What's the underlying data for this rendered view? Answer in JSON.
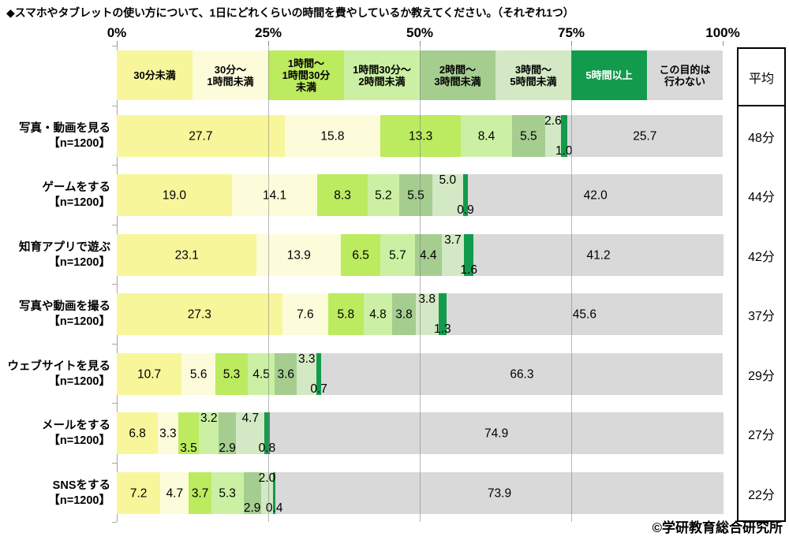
{
  "title": "◆スマホやタブレットの使い方について、1日にどれくらいの時間を費やしているか教えてください。（それぞれ1つ）",
  "x_axis": {
    "tick_labels": [
      "0%",
      "25%",
      "50%",
      "75%",
      "100%"
    ]
  },
  "average_column": {
    "header": "平均"
  },
  "footer": {
    "credit": "©学研教育総合研究所"
  },
  "chart_data": {
    "type": "bar",
    "subtype": "horizontal-stacked",
    "unit": "percent",
    "xlim": [
      0,
      100
    ],
    "x_ticks": [
      "0%",
      "25%",
      "50%",
      "75%",
      "100%"
    ],
    "grid": true,
    "legend_position": "top",
    "segments": [
      {
        "label": "30分未満",
        "display": "30分未満",
        "color": "#F7F69B",
        "text_color": "#000000"
      },
      {
        "label": "30分～1時間未満",
        "display": "30分～\n1時間未満",
        "color": "#FCFCDB",
        "text_color": "#000000"
      },
      {
        "label": "1時間～1時間30分未満",
        "display": "1時間～\n1時間30分\n未満",
        "color": "#BCEB5F",
        "text_color": "#000000"
      },
      {
        "label": "1時間30分～2時間未満",
        "display": "1時間30分～\n2時間未満",
        "color": "#CBF0A3",
        "text_color": "#000000"
      },
      {
        "label": "2時間～3時間未満",
        "display": "2時間～\n3時間未満",
        "color": "#A5CD90",
        "text_color": "#000000"
      },
      {
        "label": "3時間～5時間未満",
        "display": "3時間～\n5時間未満",
        "color": "#D3E8C4",
        "text_color": "#000000"
      },
      {
        "label": "5時間以上",
        "display": "5時間以上",
        "color": "#129B4C",
        "text_color": "#FFFFFF"
      },
      {
        "label": "この目的は行わない",
        "display": "この目的は\n行わない",
        "color": "#D9D9D9",
        "text_color": "#000000"
      }
    ],
    "rows": [
      {
        "label": "写真・動画を見る",
        "n": "【n=1200】",
        "average": "48分",
        "values": [
          27.7,
          15.8,
          13.3,
          8.4,
          5.5,
          2.6,
          1.0,
          25.7
        ],
        "placement": [
          "in",
          "in",
          "in",
          "in",
          "in",
          "up",
          "down",
          "in"
        ]
      },
      {
        "label": "ゲームをする",
        "n": "【n=1200】",
        "average": "44分",
        "values": [
          19.0,
          14.1,
          8.3,
          5.2,
          5.5,
          5.0,
          0.9,
          42.0
        ],
        "placement": [
          "in",
          "in",
          "in",
          "in",
          "in",
          "up",
          "down",
          "in"
        ]
      },
      {
        "label": "知育アプリで遊ぶ",
        "n": "【n=1200】",
        "average": "42分",
        "values": [
          23.1,
          13.9,
          6.5,
          5.7,
          4.4,
          3.7,
          1.6,
          41.2
        ],
        "placement": [
          "in",
          "in",
          "in",
          "in",
          "in",
          "up",
          "down",
          "in"
        ]
      },
      {
        "label": "写真や動画を撮る",
        "n": "【n=1200】",
        "average": "37分",
        "values": [
          27.3,
          7.6,
          5.8,
          4.8,
          3.8,
          3.8,
          1.3,
          45.6
        ],
        "placement": [
          "in",
          "in",
          "in",
          "in",
          "in",
          "up",
          "down",
          "in"
        ]
      },
      {
        "label": "ウェブサイトを見る",
        "n": "【n=1200】",
        "average": "29分",
        "values": [
          10.7,
          5.6,
          5.3,
          4.5,
          3.6,
          3.3,
          0.7,
          66.3
        ],
        "placement": [
          "in",
          "in",
          "in",
          "in",
          "in",
          "up",
          "down",
          "in"
        ]
      },
      {
        "label": "メールをする",
        "n": "【n=1200】",
        "average": "27分",
        "values": [
          6.8,
          3.3,
          3.5,
          3.2,
          2.9,
          4.7,
          0.8,
          74.9
        ],
        "placement": [
          "in",
          "in",
          "down",
          "up",
          "down",
          "up",
          "down",
          "in"
        ]
      },
      {
        "label": "SNSをする",
        "n": "【n=1200】",
        "average": "22分",
        "values": [
          7.2,
          4.7,
          3.7,
          5.3,
          2.9,
          2.0,
          0.4,
          73.9
        ],
        "placement": [
          "in",
          "in",
          "in",
          "in",
          "down",
          "up",
          "down",
          "in"
        ]
      }
    ]
  }
}
